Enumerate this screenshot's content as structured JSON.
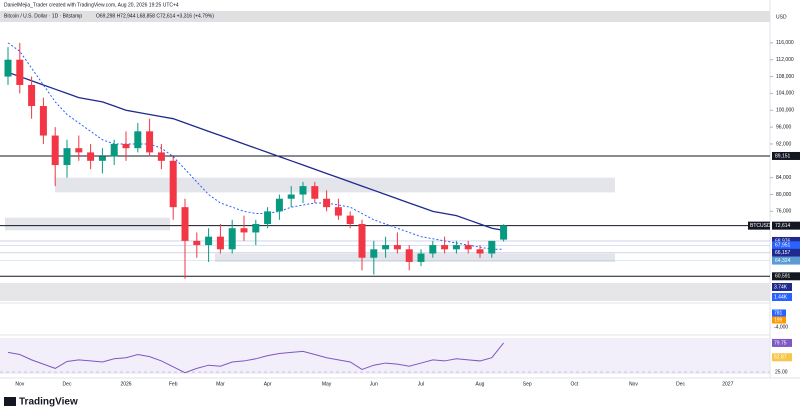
{
  "chart_data": {
    "type": "candlestick",
    "caption": "DanielMejia_Trader created with TradingView.com, Aug 20, 2026 19:25 UTC+4",
    "title": "Bitcoin / U.S. Dollar · 1D · Bitstamp",
    "legend_text": "O69,298 H72,944 L68,858 C72,614 +3,316 (+4.79%)",
    "currency": "USD",
    "symbol": "BTCUSD",
    "brand": "TradingView",
    "categories": [
      null,
      "Nov",
      null,
      null,
      null,
      "Dec",
      null,
      null,
      null,
      null,
      "2026",
      null,
      null,
      null,
      "Feb",
      null,
      null,
      null,
      "Mar",
      null,
      null,
      null,
      "Apr",
      null,
      null,
      null,
      null,
      "May",
      null,
      null,
      null,
      "Jun",
      null,
      null,
      null,
      "Jul",
      null,
      null,
      null,
      null,
      "Aug",
      null,
      null,
      null,
      "Sep",
      null,
      null,
      null,
      "Oct",
      null,
      null,
      null,
      null,
      "Nov",
      null,
      null,
      null,
      "Dec",
      null,
      null,
      null,
      "2027",
      null
    ],
    "open": [
      108000,
      112000,
      106000,
      101000,
      94000,
      87000,
      91000,
      90000,
      88000,
      89000,
      92000,
      91000,
      95000,
      90000,
      88000,
      77000,
      69000,
      68000,
      70000,
      67000,
      72000,
      71000,
      73000,
      76000,
      79000,
      80000,
      82000,
      79000,
      77000,
      75000,
      73000,
      65000,
      67000,
      68000,
      67000,
      64000,
      66000,
      68000,
      67000,
      68000,
      67000,
      66000,
      69298,
      null,
      null,
      null,
      null,
      null,
      null,
      null,
      null,
      null,
      null,
      null,
      null,
      null,
      null,
      null,
      null,
      null,
      null,
      null,
      null
    ],
    "high": [
      115000,
      116000,
      108000,
      103000,
      96000,
      93000,
      94000,
      92000,
      91000,
      93000,
      95000,
      97000,
      98000,
      92000,
      89000,
      79000,
      71000,
      72000,
      73000,
      74000,
      75000,
      74000,
      77000,
      80000,
      82000,
      83000,
      83000,
      81000,
      79000,
      76000,
      74000,
      69000,
      70000,
      71000,
      68000,
      67000,
      69000,
      70000,
      69000,
      69000,
      68000,
      69000,
      72944,
      null,
      null,
      null,
      null,
      null,
      null,
      null,
      null,
      null,
      null,
      null,
      null,
      null,
      null,
      null,
      null,
      null,
      null,
      null,
      null
    ],
    "low": [
      106000,
      104000,
      98000,
      92000,
      82000,
      84000,
      88000,
      86000,
      85000,
      87000,
      88000,
      90000,
      89000,
      86000,
      74000,
      60000,
      65000,
      64000,
      66000,
      66000,
      69000,
      68000,
      72000,
      74000,
      77000,
      78000,
      78000,
      76000,
      74000,
      72000,
      62000,
      61000,
      65000,
      66000,
      62000,
      63000,
      65000,
      66000,
      66000,
      66000,
      65000,
      65000,
      68858,
      null,
      null,
      null,
      null,
      null,
      null,
      null,
      null,
      null,
      null,
      null,
      null,
      null,
      null,
      null,
      null,
      null,
      null,
      null,
      null
    ],
    "close": [
      112000,
      106000,
      101000,
      94000,
      87000,
      91000,
      90000,
      88000,
      89000,
      92000,
      91000,
      95000,
      90000,
      88000,
      77000,
      69000,
      68000,
      70000,
      67000,
      72000,
      71000,
      73000,
      76000,
      79000,
      80000,
      82000,
      79000,
      77000,
      75000,
      73000,
      65000,
      67000,
      68000,
      67000,
      64000,
      66000,
      68000,
      67000,
      68000,
      67000,
      66000,
      69000,
      72614,
      null,
      null,
      null,
      null,
      null,
      null,
      null,
      null,
      null,
      null,
      null,
      null,
      null,
      null,
      null,
      null,
      null,
      null,
      null,
      null
    ],
    "up_color": "#089981",
    "down_color": "#f23645",
    "series": [
      {
        "color": "#1e2a8c",
        "values": [
          109000,
          108000,
          107000,
          106000,
          105000,
          104000,
          103000,
          102500,
          102000,
          101000,
          100000,
          99500,
          99000,
          98500,
          98000,
          97000,
          96000,
          95000,
          94000,
          93000,
          92000,
          91000,
          90000,
          89000,
          88000,
          87000,
          86000,
          85000,
          84000,
          83000,
          82000,
          81000,
          80000,
          79000,
          78000,
          77000,
          76000,
          75500,
          75000,
          74000,
          73000,
          72000,
          71500,
          null,
          null,
          null,
          null,
          null,
          null,
          null,
          null,
          null,
          null,
          null,
          null,
          null,
          null,
          null,
          null,
          null,
          null,
          null,
          null
        ]
      },
      {
        "color": "#2962ff",
        "dashed": true,
        "values": [
          116000,
          114000,
          110000,
          106000,
          102000,
          99000,
          97000,
          95000,
          93000,
          92000,
          92000,
          92000,
          92000,
          91000,
          89000,
          86000,
          83000,
          80000,
          78000,
          77000,
          76000,
          75500,
          75500,
          76000,
          77000,
          77500,
          78000,
          78000,
          77500,
          77000,
          75500,
          74000,
          73000,
          72000,
          71000,
          70000,
          69500,
          69000,
          68500,
          68000,
          67500,
          67000,
          67000,
          null,
          null,
          null,
          null,
          null,
          null,
          null,
          null,
          null,
          null,
          null,
          null,
          null,
          null,
          null,
          null,
          null,
          null,
          null,
          null
        ]
      }
    ],
    "ylim": [
      59000,
      120000
    ],
    "yticks": [
      {
        "value": 116000,
        "label": "116,000"
      },
      {
        "value": 112000,
        "label": "112,000"
      },
      {
        "value": 108000,
        "label": "108,000"
      },
      {
        "value": 104000,
        "label": "104,000"
      },
      {
        "value": 100000,
        "label": "100,000"
      },
      {
        "value": 96000,
        "label": "96,000"
      },
      {
        "value": 92000,
        "label": "92,000"
      },
      {
        "value": 84000,
        "label": "84,000"
      },
      {
        "value": 80000,
        "label": "80,000"
      },
      {
        "value": 76000,
        "label": "76,000"
      }
    ],
    "zones": [
      {
        "low": 80500,
        "high": 84000
      },
      {
        "low": 71500,
        "high": 74500
      },
      {
        "low": 64000,
        "high": 66000
      }
    ],
    "price_labels": [
      {
        "value": 89151,
        "label": "89,151",
        "color": "#131722"
      },
      {
        "value": 72614,
        "label": "72,614",
        "color": "#131722"
      },
      {
        "value": 68976,
        "label": "68,976",
        "color": "#1e2a8c"
      },
      {
        "value": 67951,
        "label": "67,951",
        "color": "#2962ff"
      },
      {
        "value": 66157,
        "label": "66,157",
        "color": "#1e2a8c"
      },
      {
        "value": 64324,
        "label": "64,324",
        "color": "#5b9bd5"
      },
      {
        "value": 60591,
        "label": "60,591",
        "color": "#131722"
      }
    ],
    "volume_labels": [
      "3.74K",
      "1.44K"
    ],
    "macd_labels": [
      "781",
      "199",
      "-4,000"
    ],
    "rsi": {
      "color": "#7e57c2",
      "values": [
        62,
        58,
        48,
        40,
        32,
        45,
        48,
        46,
        44,
        50,
        52,
        58,
        54,
        46,
        35,
        24,
        32,
        38,
        36,
        44,
        46,
        50,
        56,
        60,
        62,
        64,
        58,
        52,
        48,
        44,
        30,
        38,
        42,
        40,
        36,
        42,
        48,
        46,
        50,
        48,
        46,
        52,
        79.75,
        null,
        null,
        null,
        null,
        null,
        null,
        null,
        null,
        null,
        null,
        null,
        null,
        null,
        null,
        null,
        null,
        null,
        null,
        null,
        null
      ],
      "ylim": [
        14,
        89
      ],
      "yticks": [
        {
          "value": 25,
          "label": "25.00"
        }
      ],
      "labels": [
        {
          "value": 79.75,
          "label": "79.75",
          "color": "#7e57c2"
        },
        {
          "value": 52.87,
          "label": "52.87",
          "color": "#f7c548"
        }
      ]
    }
  }
}
